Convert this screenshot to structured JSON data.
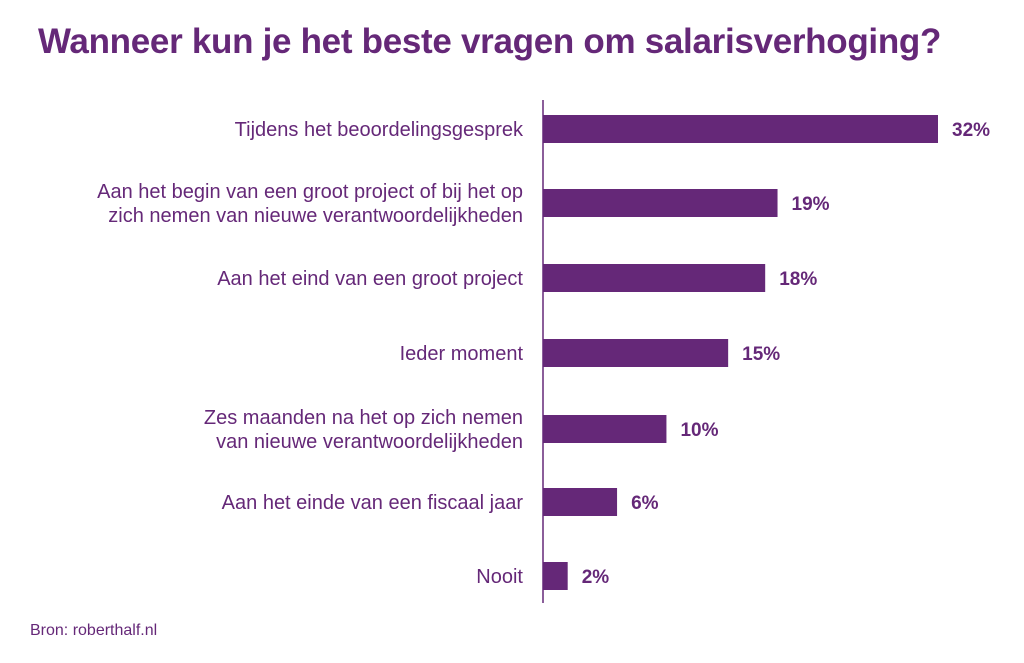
{
  "chart_data": {
    "type": "bar",
    "orientation": "horizontal",
    "title": "Wanneer kun je het beste vragen om salarisverhoging?",
    "categories": [
      [
        "Tijdens het beoordelingsgesprek"
      ],
      [
        "Aan het begin van een groot project of bij het op",
        "zich nemen van nieuwe verantwoordelijkheden"
      ],
      [
        "Aan het eind van een groot project"
      ],
      [
        "Ieder moment"
      ],
      [
        "Zes maanden na het op zich nemen",
        "van nieuwe verantwoordelijkheden"
      ],
      [
        "Aan het einde van een fiscaal jaar"
      ],
      [
        "Nooit"
      ]
    ],
    "values": [
      32,
      19,
      18,
      15,
      10,
      6,
      2
    ],
    "value_labels": [
      "32%",
      "19%",
      "18%",
      "15%",
      "10%",
      "6%",
      "2%"
    ],
    "unit": "%",
    "xlim": [
      0,
      32
    ],
    "grid": false,
    "legend": "none",
    "bar_color": "#652878",
    "source": "Bron: roberthalf.nl"
  }
}
